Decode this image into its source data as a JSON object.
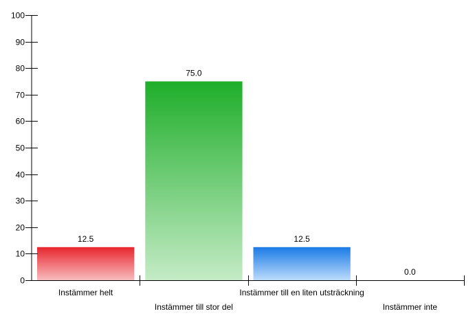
{
  "chart_data": {
    "type": "bar",
    "categories": [
      "Instämmer helt",
      "Instämmer till stor del",
      "Instämmer till en liten utsträckning",
      "Instämmer inte"
    ],
    "values": [
      12.5,
      75.0,
      12.5,
      0.0
    ],
    "value_labels": [
      "12.5",
      "75.0",
      "12.5",
      "0.0"
    ],
    "ylim": [
      0,
      100
    ],
    "yticks": [
      0,
      10,
      20,
      30,
      40,
      50,
      60,
      70,
      80,
      90,
      100
    ],
    "xlabel": "",
    "ylabel": "",
    "title": "",
    "grid": false,
    "legend": "none",
    "colors": [
      {
        "top": "#e8262e",
        "bottom": "#f7bcbf"
      },
      {
        "top": "#1fae2a",
        "bottom": "#c4ebc6"
      },
      {
        "top": "#1a7ae6",
        "bottom": "#bcdcfb"
      },
      {
        "top": "#999999",
        "bottom": "#dddddd"
      }
    ]
  }
}
